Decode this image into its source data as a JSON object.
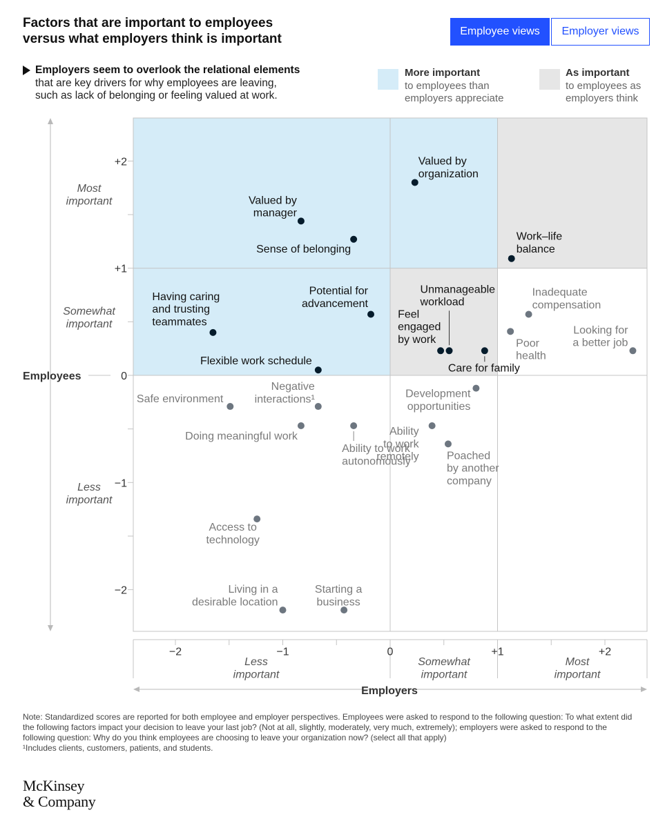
{
  "header": {
    "title_line1": "Factors that are important to employees",
    "title_line2": "versus what employers think is important"
  },
  "toggle": {
    "employee_label": "Employee views",
    "employer_label": "Employer views",
    "active": "employee"
  },
  "subtitle": {
    "bold": "Employers seem to overlook the relational elements",
    "rest_line1": "that are key drivers for why employees are leaving,",
    "rest_line2": "such as lack of belonging or feeling valued at work."
  },
  "legend": {
    "more": {
      "bold": "More important",
      "line1": "to employees than",
      "line2": "employers appreciate",
      "color": "#d5ecf8"
    },
    "as": {
      "bold": "As important",
      "line1": "to employees as",
      "line2": "employers think",
      "color": "#e6e6e6"
    }
  },
  "chart_data": {
    "type": "scatter",
    "xlabel": "Employers",
    "ylabel": "Employees",
    "xlim": [
      -2.4,
      2.4
    ],
    "ylim": [
      -2.4,
      2.4
    ],
    "x_ticks": [
      {
        "value": -2,
        "label": "−2"
      },
      {
        "value": -1,
        "label": "−1"
      },
      {
        "value": 0,
        "label": "0"
      },
      {
        "value": 1,
        "label": "+1"
      },
      {
        "value": 2,
        "label": "+2"
      }
    ],
    "y_ticks": [
      {
        "value": 2,
        "label": "+2"
      },
      {
        "value": 1,
        "label": "+1"
      },
      {
        "value": 0,
        "label": "0"
      },
      {
        "value": -1,
        "label": "−1"
      },
      {
        "value": -2,
        "label": "−2"
      }
    ],
    "y_bands": [
      {
        "lines": [
          "Most",
          "important"
        ]
      },
      {
        "lines": [
          "Somewhat",
          "important"
        ]
      },
      {
        "lines": [
          "Less",
          "important"
        ]
      }
    ],
    "x_bands": [
      {
        "lines": [
          "Less",
          "important"
        ]
      },
      {
        "lines": [
          "Somewhat",
          "important"
        ]
      },
      {
        "lines": [
          "Most",
          "important"
        ]
      }
    ],
    "colors": {
      "highlight_point": "#051c2c",
      "other_point": "#6d7680",
      "highlight_text": "#111111",
      "other_text": "#7a7a7a",
      "blue_zone": "#d5ecf8",
      "gray_zone": "#e6e6e6"
    },
    "points": [
      {
        "lines": [
          "Valued by",
          "organization"
        ],
        "x": 0.23,
        "y": 1.8,
        "highlight": true
      },
      {
        "lines": [
          "Valued by",
          "manager"
        ],
        "x": -0.83,
        "y": 1.44,
        "highlight": true
      },
      {
        "lines": [
          "Sense of belonging"
        ],
        "x": -0.34,
        "y": 1.27,
        "highlight": true
      },
      {
        "lines": [
          "Work–life",
          "balance"
        ],
        "x": 1.13,
        "y": 1.09,
        "highlight": true
      },
      {
        "lines": [
          "Having caring",
          "and trusting",
          "teammates"
        ],
        "x": -1.65,
        "y": 0.4,
        "highlight": true
      },
      {
        "lines": [
          "Potential for",
          "advancement"
        ],
        "x": -0.18,
        "y": 0.57,
        "highlight": true
      },
      {
        "lines": [
          "Flexible work schedule"
        ],
        "x": -0.67,
        "y": 0.05,
        "highlight": true
      },
      {
        "lines": [
          "Unmanageable",
          "workload"
        ],
        "x": 0.55,
        "y": 0.23,
        "highlight": true
      },
      {
        "lines": [
          "Feel",
          "engaged",
          "by work"
        ],
        "x": 0.47,
        "y": 0.23,
        "highlight": true
      },
      {
        "lines": [
          "Care for family"
        ],
        "x": 0.88,
        "y": 0.23,
        "highlight": true
      },
      {
        "lines": [
          "Inadequate",
          "compensation"
        ],
        "x": 1.29,
        "y": 0.57,
        "highlight": false
      },
      {
        "lines": [
          "Poor",
          "health"
        ],
        "x": 1.12,
        "y": 0.41,
        "highlight": false
      },
      {
        "lines": [
          "Looking for",
          "a better job"
        ],
        "x": 2.26,
        "y": 0.23,
        "highlight": false
      },
      {
        "lines": [
          "Safe environment"
        ],
        "x": -1.49,
        "y": -0.29,
        "highlight": false
      },
      {
        "lines": [
          "Negative",
          "interactions¹"
        ],
        "x": -0.67,
        "y": -0.29,
        "highlight": false
      },
      {
        "lines": [
          "Doing meaningful work"
        ],
        "x": -0.83,
        "y": -0.47,
        "highlight": false
      },
      {
        "lines": [
          "Ability to work",
          "autonomously"
        ],
        "x": -0.34,
        "y": -0.47,
        "highlight": false
      },
      {
        "lines": [
          "Development",
          "opportunities"
        ],
        "x": 0.8,
        "y": -0.12,
        "highlight": false
      },
      {
        "lines": [
          "Ability",
          "to work",
          "remotely"
        ],
        "x": 0.39,
        "y": -0.47,
        "highlight": false
      },
      {
        "lines": [
          "Poached",
          "by another",
          "company"
        ],
        "x": 0.54,
        "y": -0.64,
        "highlight": false
      },
      {
        "lines": [
          "Access to",
          "technology"
        ],
        "x": -1.24,
        "y": -1.34,
        "highlight": false
      },
      {
        "lines": [
          "Living in a",
          "desirable location"
        ],
        "x": -1.0,
        "y": -2.19,
        "highlight": false
      },
      {
        "lines": [
          "Starting a",
          "business"
        ],
        "x": -0.43,
        "y": -2.19,
        "highlight": false
      }
    ]
  },
  "notes": {
    "note": "Note: Standardized scores are reported for both employee and employer perspectives. Employees were asked to respond to the following question: To what extent did the following factors impact your decision to leave your last job? (Not at all, slightly, moderately, very much, extremely); employers were asked to respond to the following question: Why do you think employees are choosing to leave your organization now? (select all that apply)",
    "footnote": "¹Includes clients, customers, patients, and students."
  },
  "logo": {
    "line1": "McKinsey",
    "line2": "& Company"
  }
}
